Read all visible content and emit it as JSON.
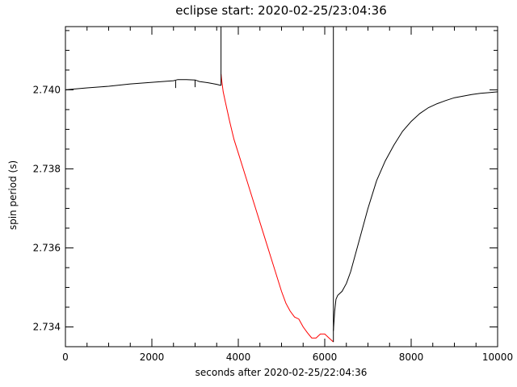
{
  "chart_data": {
    "type": "line",
    "title": "eclipse start: 2020-02-25/23:04:36",
    "xlabel": "seconds after 2020-02-25/22:04:36",
    "ylabel": "spin period (s)",
    "xlim": [
      0,
      10000
    ],
    "ylim": [
      2.7335,
      2.7416
    ],
    "xticks": [
      0,
      2000,
      4000,
      6000,
      8000,
      10000
    ],
    "xtick_labels": [
      "0",
      "2000",
      "4000",
      "6000",
      "8000",
      "10000"
    ],
    "yticks": [
      2.734,
      2.736,
      2.738,
      2.74
    ],
    "ytick_labels": [
      "2.734",
      "2.736",
      "2.738",
      "2.740"
    ],
    "grid": false,
    "series": [
      {
        "color": "#000000",
        "x": [
          0,
          500,
          1000,
          1500,
          2000,
          2500,
          2600,
          2800,
          3000,
          3100,
          3300,
          3500,
          3600
        ],
        "y": [
          2.74,
          2.74005,
          2.74009,
          2.74015,
          2.74019,
          2.74023,
          2.74026,
          2.74026,
          2.74025,
          2.74021,
          2.74018,
          2.74014,
          2.74011
        ]
      },
      {
        "color": "#ff0000",
        "x": [
          3600,
          3620,
          3650,
          3700,
          3750,
          3800,
          3900,
          4000,
          4200,
          4400,
          4600,
          4800,
          5000,
          5100,
          5200,
          5300,
          5400,
          5500,
          5600,
          5700,
          5800,
          5900,
          6000,
          6100,
          6200
        ],
        "y": [
          2.7404,
          2.7402,
          2.73995,
          2.7397,
          2.73945,
          2.7392,
          2.73875,
          2.7384,
          2.7377,
          2.737,
          2.7363,
          2.7356,
          2.7349,
          2.7346,
          2.7344,
          2.73425,
          2.7342,
          2.734,
          2.73385,
          2.73372,
          2.73372,
          2.73382,
          2.73382,
          2.73372,
          2.73362
        ]
      },
      {
        "color": "#000000",
        "x": [
          6200,
          6230,
          6260,
          6300,
          6400,
          6500,
          6600,
          6800,
          7000,
          7200,
          7400,
          7600,
          7800,
          8000,
          8200,
          8400,
          8600,
          8800,
          9000,
          9200,
          9400,
          9600,
          9800,
          10000
        ],
        "y": [
          2.7339,
          2.7344,
          2.7347,
          2.7348,
          2.7349,
          2.7351,
          2.7354,
          2.7362,
          2.737,
          2.7377,
          2.7382,
          2.7386,
          2.73895,
          2.7392,
          2.7394,
          2.73955,
          2.73965,
          2.73973,
          2.7398,
          2.73984,
          2.73988,
          2.73991,
          2.73993,
          2.73995
        ]
      }
    ],
    "annotations": [
      {
        "type": "rect",
        "x0": 3600,
        "x1": 6200,
        "y_top": 2.7416,
        "color": "#000000"
      }
    ]
  }
}
